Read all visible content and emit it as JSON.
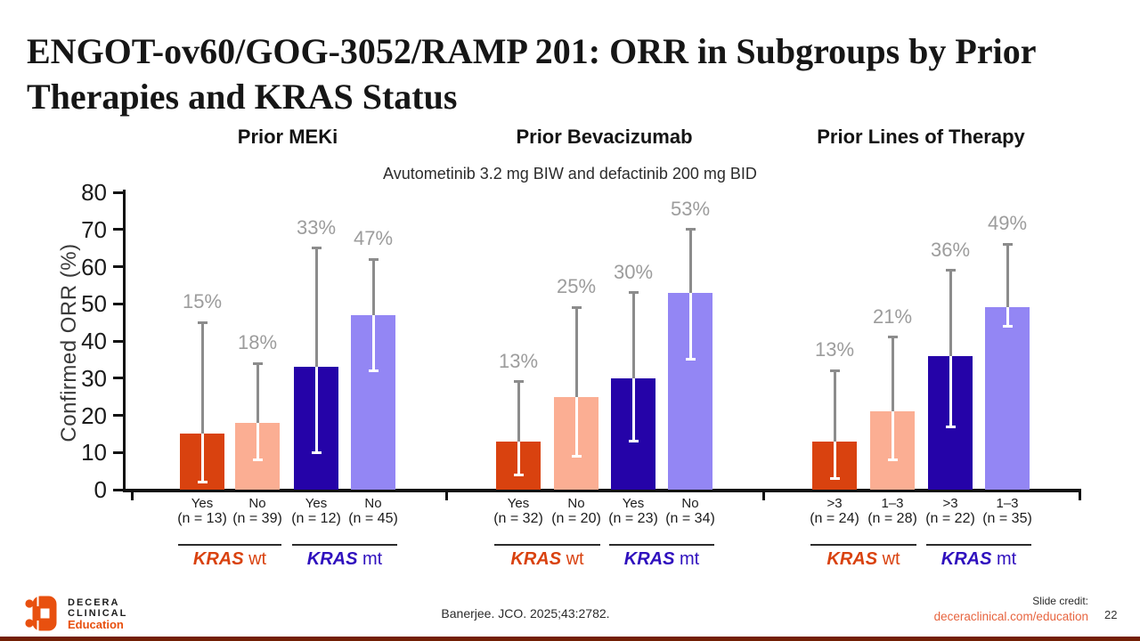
{
  "slide": {
    "title_line1": "ENGOT-ov60/GOG-3052/RAMP 201: ORR in Subgroups by Prior",
    "title_line2": "Therapies and KRAS Status",
    "page_number": "22"
  },
  "footer": {
    "citation": "Banerjee. JCO. 2025;43:2782.",
    "slide_credit_label": "Slide credit:",
    "slide_credit_link": "deceraclinical.com/education",
    "logo_line1": "DECERA",
    "logo_line2": "CLINICAL",
    "logo_line3": "Education",
    "logo_color": "#e8500f"
  },
  "chart_data": {
    "type": "bar",
    "title": "Avutometinib 3.2 mg BIW and defactinib 200 mg BID",
    "ylabel": "Confirmed ORR (%)",
    "ylim": [
      0,
      80
    ],
    "yticks": [
      0,
      10,
      20,
      30,
      40,
      50,
      60,
      70,
      80
    ],
    "grid": "off",
    "legend": "none",
    "bar_colors": [
      "#d9420f",
      "#fbae93",
      "#2503a8",
      "#9386f4"
    ],
    "error_bar_color": "#8c8c8c",
    "error_bar_inside_bar_color": "#ffffff",
    "value_label_color": "#9c9c9c",
    "panels": [
      {
        "header": "Prior MEKi",
        "bars": [
          {
            "label": "Yes",
            "n": "(n = 13)",
            "value": 15,
            "display": "15%",
            "ci": [
              2,
              45
            ]
          },
          {
            "label": "No",
            "n": "(n = 39)",
            "value": 18,
            "display": "18%",
            "ci": [
              8,
              34
            ]
          },
          {
            "label": "Yes",
            "n": "(n = 12)",
            "value": 33,
            "display": "33%",
            "ci": [
              10,
              65
            ]
          },
          {
            "label": "No",
            "n": "(n = 45)",
            "value": 47,
            "display": "47%",
            "ci": [
              32,
              62
            ]
          }
        ],
        "groups": [
          {
            "gene": "KRAS",
            "suffix": "wt",
            "color": "#d9420f"
          },
          {
            "gene": "KRAS",
            "suffix": "mt",
            "color": "#2f10be"
          }
        ]
      },
      {
        "header": "Prior Bevacizumab",
        "bars": [
          {
            "label": "Yes",
            "n": "(n = 32)",
            "value": 13,
            "display": "13%",
            "ci": [
              4,
              29
            ]
          },
          {
            "label": "No",
            "n": "(n = 20)",
            "value": 25,
            "display": "25%",
            "ci": [
              9,
              49
            ]
          },
          {
            "label": "Yes",
            "n": "(n = 23)",
            "value": 30,
            "display": "30%",
            "ci": [
              13,
              53
            ]
          },
          {
            "label": "No",
            "n": "(n = 34)",
            "value": 53,
            "display": "53%",
            "ci": [
              35,
              70
            ]
          }
        ],
        "groups": [
          {
            "gene": "KRAS",
            "suffix": "wt",
            "color": "#d9420f"
          },
          {
            "gene": "KRAS",
            "suffix": "mt",
            "color": "#2f10be"
          }
        ]
      },
      {
        "header": "Prior Lines of Therapy",
        "bars": [
          {
            "label": ">3",
            "n": "(n = 24)",
            "value": 13,
            "display": "13%",
            "ci": [
              3,
              32
            ]
          },
          {
            "label": "1–3",
            "n": "(n = 28)",
            "value": 21,
            "display": "21%",
            "ci": [
              8,
              41
            ]
          },
          {
            "label": ">3",
            "n": "(n = 22)",
            "value": 36,
            "display": "36%",
            "ci": [
              17,
              59
            ]
          },
          {
            "label": "1–3",
            "n": "(n = 35)",
            "value": 49,
            "display": "49%",
            "ci": [
              44,
              66
            ]
          }
        ],
        "groups": [
          {
            "gene": "KRAS",
            "suffix": "wt",
            "color": "#d9420f"
          },
          {
            "gene": "KRAS",
            "suffix": "mt",
            "color": "#2f10be"
          }
        ]
      }
    ]
  }
}
